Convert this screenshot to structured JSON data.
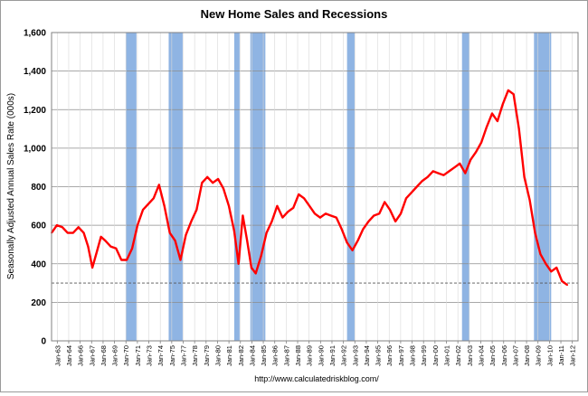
{
  "chart_data": {
    "type": "line",
    "title": "New Home Sales and Recessions",
    "ylabel": "Seasonally Adjusted Annual Sales Rate (000s)",
    "xlabel": "",
    "source": "http://www.calculatedriskblog.com/",
    "ylim": [
      0,
      1600
    ],
    "yticks": [
      0,
      200,
      400,
      600,
      800,
      1000,
      1200,
      1400,
      1600
    ],
    "ytick_labels": [
      "0",
      "200",
      "400",
      "600",
      "800",
      "1,000",
      "1,200",
      "1,400",
      "1,600"
    ],
    "x_range": [
      1963.0,
      2012.0
    ],
    "xtick_labels": [
      "Jan-63",
      "Jan-64",
      "Jan-66",
      "Jan-67",
      "Jan-68",
      "Jan-69",
      "Jan-70",
      "Jan-71",
      "Jan-73",
      "Jan-74",
      "Jan-75",
      "Jan-77",
      "Jan-78",
      "Jan-79",
      "Jan-80",
      "Jan-81",
      "Jan-82",
      "Jan-84",
      "Jan-85",
      "Jan-86",
      "Jan-87",
      "Jan-88",
      "Jan-89",
      "Jan-90",
      "Jan-91",
      "Jan-92",
      "Jan-93",
      "Jan-94",
      "Jan-95",
      "Jan-96",
      "Jan-97",
      "Jan-98",
      "Jan-99",
      "Jan-00",
      "Jan-01",
      "Jan-02",
      "Jan-03",
      "Jan-04",
      "Jan-05",
      "Jan-06",
      "Jan-07",
      "Jan-08",
      "Jan-09",
      "Jan-10",
      "Jan-11",
      "Jan-12"
    ],
    "grid": true,
    "reference_line": 300,
    "line_color": "#ff0000",
    "recession_color": "#8fb4e3",
    "recessions": [
      [
        1969.9,
        1970.9
      ],
      [
        1973.9,
        1975.2
      ],
      [
        1980.0,
        1980.5
      ],
      [
        1981.5,
        1982.9
      ],
      [
        1990.5,
        1991.2
      ],
      [
        2001.2,
        2001.9
      ],
      [
        2007.9,
        2009.5
      ]
    ],
    "series": [
      {
        "x": [
          1963.0,
          1963.5,
          1964.0,
          1964.5,
          1965.0,
          1965.5,
          1966.0,
          1966.4,
          1966.8,
          1967.2,
          1967.6,
          1968.0,
          1968.5,
          1969.0,
          1969.5,
          1970.0,
          1970.5,
          1971.0,
          1971.5,
          1972.0,
          1972.5,
          1973.0,
          1973.5,
          1974.0,
          1974.5,
          1975.0,
          1975.5,
          1976.0,
          1976.5,
          1977.0,
          1977.5,
          1978.0,
          1978.5,
          1979.0,
          1979.5,
          1980.0,
          1980.4,
          1980.8,
          1981.2,
          1981.6,
          1982.0,
          1982.5,
          1983.0,
          1983.5,
          1984.0,
          1984.5,
          1985.0,
          1985.5,
          1986.0,
          1986.5,
          1987.0,
          1987.5,
          1988.0,
          1988.5,
          1989.0,
          1989.5,
          1990.0,
          1990.5,
          1991.0,
          1991.5,
          1992.0,
          1992.5,
          1993.0,
          1993.5,
          1994.0,
          1994.5,
          1995.0,
          1995.5,
          1996.0,
          1996.5,
          1997.0,
          1997.5,
          1998.0,
          1998.5,
          1999.0,
          1999.5,
          2000.0,
          2000.5,
          2001.0,
          2001.5,
          2002.0,
          2002.5,
          2003.0,
          2003.5,
          2004.0,
          2004.5,
          2005.0,
          2005.5,
          2006.0,
          2006.5,
          2007.0,
          2007.5,
          2008.0,
          2008.5,
          2009.0,
          2009.5,
          2010.0,
          2010.5,
          2011.0
        ],
        "y": [
          560,
          600,
          590,
          560,
          560,
          590,
          560,
          490,
          380,
          460,
          540,
          520,
          490,
          480,
          420,
          420,
          480,
          600,
          680,
          710,
          740,
          810,
          700,
          560,
          520,
          420,
          550,
          620,
          680,
          820,
          850,
          820,
          840,
          790,
          700,
          570,
          400,
          650,
          520,
          380,
          350,
          440,
          560,
          620,
          700,
          640,
          670,
          690,
          760,
          740,
          700,
          660,
          640,
          660,
          650,
          640,
          580,
          510,
          470,
          520,
          580,
          620,
          650,
          660,
          720,
          680,
          620,
          660,
          740,
          770,
          800,
          830,
          850,
          880,
          870,
          860,
          880,
          900,
          920,
          870,
          940,
          980,
          1030,
          1110,
          1180,
          1140,
          1230,
          1300,
          1280,
          1100,
          850,
          730,
          560,
          450,
          400,
          360,
          380,
          310,
          290
        ]
      }
    ]
  }
}
